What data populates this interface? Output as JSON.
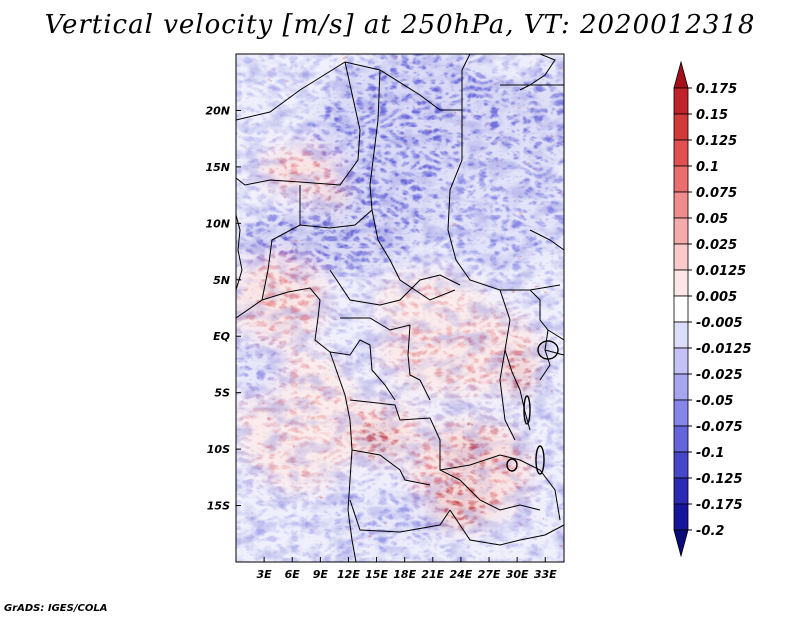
{
  "title": "Vertical velocity [m/s] at 250hPa, VT: 2020012318",
  "footer": "GrADS: IGES/COLA",
  "map": {
    "lon_range": [
      0,
      35
    ],
    "lat_range": [
      -20,
      25
    ],
    "lat_ticks": [
      {
        "value": 20,
        "label": "20N"
      },
      {
        "value": 15,
        "label": "15N"
      },
      {
        "value": 10,
        "label": "10N"
      },
      {
        "value": 5,
        "label": "5N"
      },
      {
        "value": 0,
        "label": "EQ"
      },
      {
        "value": -5,
        "label": "5S"
      },
      {
        "value": -10,
        "label": "10S"
      },
      {
        "value": -15,
        "label": "15S"
      }
    ],
    "lon_ticks": [
      {
        "value": 3,
        "label": "3E"
      },
      {
        "value": 6,
        "label": "6E"
      },
      {
        "value": 9,
        "label": "9E"
      },
      {
        "value": 12,
        "label": "12E"
      },
      {
        "value": 15,
        "label": "15E"
      },
      {
        "value": 18,
        "label": "18E"
      },
      {
        "value": 21,
        "label": "21E"
      },
      {
        "value": 24,
        "label": "24E"
      },
      {
        "value": 27,
        "label": "27E"
      },
      {
        "value": 30,
        "label": "30E"
      },
      {
        "value": 33,
        "label": "33E"
      }
    ]
  },
  "colorbar": {
    "levels": [
      "0.175",
      "0.15",
      "0.125",
      "0.1",
      "0.075",
      "0.05",
      "0.025",
      "0.0125",
      "0.005",
      "-0.005",
      "-0.0125",
      "-0.025",
      "-0.05",
      "-0.075",
      "-0.1",
      "-0.125",
      "-0.175",
      "-0.2"
    ],
    "colors": [
      "#a4101a",
      "#c0242a",
      "#d23a3a",
      "#e05050",
      "#ea6e6e",
      "#f08c8c",
      "#f6abab",
      "#fbcaca",
      "#fde6e6",
      "#ffffff",
      "#dcdcfb",
      "#c2c2f6",
      "#a5a5f0",
      "#8585ea",
      "#6464dc",
      "#4646c8",
      "#2a2ab4",
      "#16169a",
      "#0a0a7a"
    ]
  }
}
